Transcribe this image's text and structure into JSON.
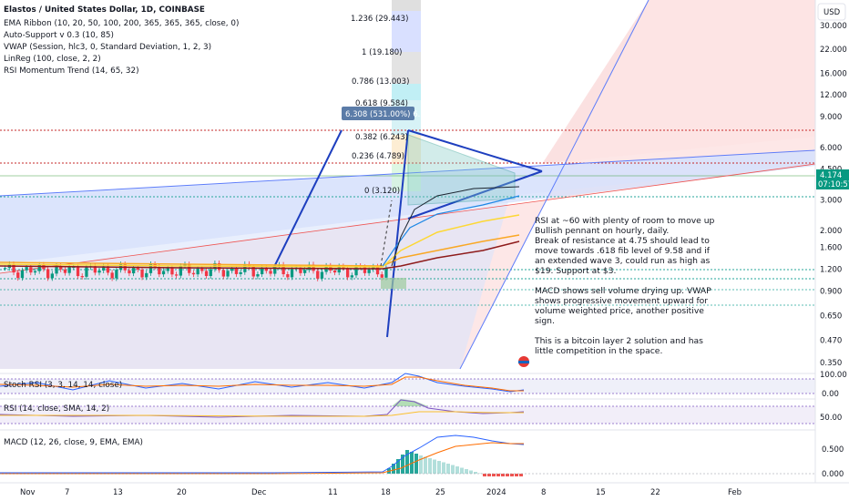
{
  "header": {
    "symbol_title": "Elastos / United States Dollar, 1D, COINBASE",
    "currency": "USD"
  },
  "indicators": [
    "EMA Ribbon (10, 20, 50, 100, 200, 365, 365, 365, close, 0)",
    "Auto-Support v 0.3 (10, 85)",
    "VWAP (Session, hlc3, 0, Standard Deviation, 1, 2, 3)",
    "LinReg (100, close, 2, 2)",
    "RSI Momentum Trend (14, 65, 32)"
  ],
  "price_axis": {
    "ticks": [
      "30.000",
      "22.000",
      "16.000",
      "12.000",
      "9.000",
      "6.000",
      "4.500",
      "3.000",
      "2.000",
      "1.600",
      "1.200",
      "0.900",
      "0.650",
      "0.470",
      "0.350"
    ],
    "current_price": "4.174",
    "countdown": "07:10:57"
  },
  "fib_levels": [
    {
      "label": "1.236 (29.443)",
      "color": "#e53935"
    },
    {
      "label": "1 (19.180)",
      "color": "#555555"
    },
    {
      "label": "0.786 (13.003)",
      "color": "#00acc1"
    },
    {
      "label": "0.618 (9.584)",
      "color": "#00acc1"
    },
    {
      "label": "0.382 (6.243)",
      "color": "#f57f17"
    },
    {
      "label": "0.236 (4.789)",
      "color": "#e53935"
    },
    {
      "label": "0 (3.120)",
      "color": "#555555"
    }
  ],
  "measure_label": "6.308 (531.00%) 6.308",
  "x_axis_ticks": [
    "Nov",
    "7",
    "13",
    "20",
    "Dec",
    "11",
    "18",
    "25",
    "2024",
    "8",
    "15",
    "22",
    "Feb"
  ],
  "annotation": [
    "RSI at ~60 with plenty of room to move up",
    "Bullish pennant on hourly, daily.",
    "Break of resistance at 4.75 should lead to",
    "move towards .618 fib level of 9.58 and if",
    "an extended wave 3, could run as high as",
    "$19. Support at $3.",
    "",
    "MACD shows sell volume drying up. VWAP",
    "shows progressive movement upward for",
    "volume weighted price, another positive",
    "sign.",
    "",
    "This is a bitcoin layer 2 solution and has",
    "little competition in the space."
  ],
  "panes": {
    "stoch": {
      "label": "Stoch RSI (3, 3, 14, 14, close)",
      "ticks": [
        "100.00",
        "0.00"
      ]
    },
    "rsi": {
      "label": "RSI (14, close, SMA, 14, 2)",
      "ticks": [
        "50.00"
      ]
    },
    "macd": {
      "label": "MACD (12, 26, close, 9, EMA, EMA)",
      "ticks": [
        "0.500",
        "0.000"
      ]
    }
  },
  "chart_data": {
    "type": "line",
    "title": "Elastos / United States Dollar, 1D, COINBASE",
    "x": [
      "Nov",
      "7",
      "13",
      "20",
      "Dec",
      "11",
      "18",
      "25",
      "2024",
      "8",
      "15",
      "22",
      "Feb"
    ],
    "price_series": [
      {
        "date": "Nov 1",
        "close": 1.24
      },
      {
        "date": "Nov 7",
        "close": 1.22
      },
      {
        "date": "Nov 13",
        "close": 1.23
      },
      {
        "date": "Nov 20",
        "close": 1.2
      },
      {
        "date": "Dec 1",
        "close": 1.23
      },
      {
        "date": "Dec 11",
        "close": 1.25
      },
      {
        "date": "Dec 17",
        "close": 1.24
      },
      {
        "date": "Dec 18",
        "close": 1.4
      },
      {
        "date": "Dec 19",
        "close": 2.4
      },
      {
        "date": "Dec 20",
        "close": 3.6
      },
      {
        "date": "Dec 21",
        "close": 5.0
      },
      {
        "date": "Dec 22",
        "close": 4.3
      },
      {
        "date": "Dec 25",
        "close": 4.5
      },
      {
        "date": "Dec 29",
        "close": 4.2
      },
      {
        "date": "Jan 1",
        "close": 3.9
      },
      {
        "date": "Jan 3",
        "close": 4.174
      }
    ],
    "ylabel": "USD",
    "ylim": [
      0.35,
      30
    ]
  }
}
